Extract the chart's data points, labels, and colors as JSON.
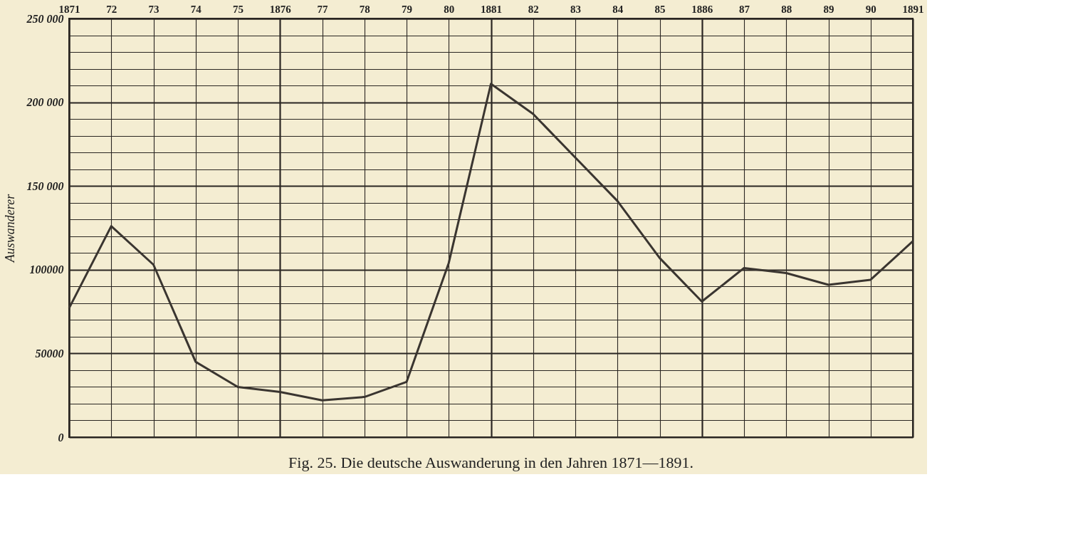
{
  "chart_data": {
    "type": "line",
    "title": "Fig. 25.  Die deutsche Auswanderung in den Jahren 1871—1891.",
    "ylabel": "Auswanderer",
    "x": [
      1871,
      1872,
      1873,
      1874,
      1875,
      1876,
      1877,
      1878,
      1879,
      1880,
      1881,
      1882,
      1883,
      1884,
      1885,
      1886,
      1887,
      1888,
      1889,
      1890,
      1891
    ],
    "series": [
      {
        "color": "#3a3530",
        "values": [
          77000,
          126000,
          103000,
          45000,
          30000,
          27000,
          22000,
          24000,
          33000,
          104000,
          211000,
          193000,
          167000,
          141000,
          107000,
          81000,
          101000,
          98000,
          91000,
          94000,
          117000
        ]
      }
    ],
    "xlim": [
      1871,
      1891
    ],
    "xticks": [
      1871,
      {
        "value": 1872,
        "label": "72"
      },
      {
        "value": 1873,
        "label": "73"
      },
      {
        "value": 1874,
        "label": "74"
      },
      {
        "value": 1875,
        "label": "75"
      },
      1876,
      {
        "value": 1877,
        "label": "77"
      },
      {
        "value": 1878,
        "label": "78"
      },
      {
        "value": 1879,
        "label": "79"
      },
      {
        "value": 1880,
        "label": "80"
      },
      1881,
      {
        "value": 1882,
        "label": "82"
      },
      {
        "value": 1883,
        "label": "83"
      },
      {
        "value": 1884,
        "label": "84"
      },
      {
        "value": 1885,
        "label": "85"
      },
      1886,
      {
        "value": 1887,
        "label": "87"
      },
      {
        "value": 1888,
        "label": "88"
      },
      {
        "value": 1889,
        "label": "89"
      },
      {
        "value": 1890,
        "label": "90"
      },
      1891
    ],
    "ylim": [
      0,
      250000
    ],
    "yticks": [
      0,
      {
        "value": 10000,
        "label": null
      },
      {
        "value": 20000,
        "label": null
      },
      {
        "value": 30000,
        "label": null
      },
      {
        "value": 40000,
        "label": null
      },
      50000,
      {
        "value": 60000,
        "label": null
      },
      {
        "value": 70000,
        "label": null
      },
      {
        "value": 80000,
        "label": null
      },
      {
        "value": 90000,
        "label": null
      },
      100000,
      {
        "value": 110000,
        "label": null
      },
      {
        "value": 120000,
        "label": null
      },
      {
        "value": 130000,
        "label": null
      },
      {
        "value": 140000,
        "label": null
      },
      {
        "value": 150000,
        "label": "150 000"
      },
      {
        "value": 160000,
        "label": null
      },
      {
        "value": 170000,
        "label": null
      },
      {
        "value": 180000,
        "label": null
      },
      {
        "value": 190000,
        "label": null
      },
      {
        "value": 200000,
        "label": "200 000"
      },
      {
        "value": 210000,
        "label": null
      },
      {
        "value": 220000,
        "label": null
      },
      {
        "value": 230000,
        "label": null
      },
      {
        "value": 240000,
        "label": null
      },
      {
        "value": 250000,
        "label": "250 000"
      }
    ],
    "grid": true,
    "legend": false,
    "marker": "none",
    "line_style": "solid"
  }
}
